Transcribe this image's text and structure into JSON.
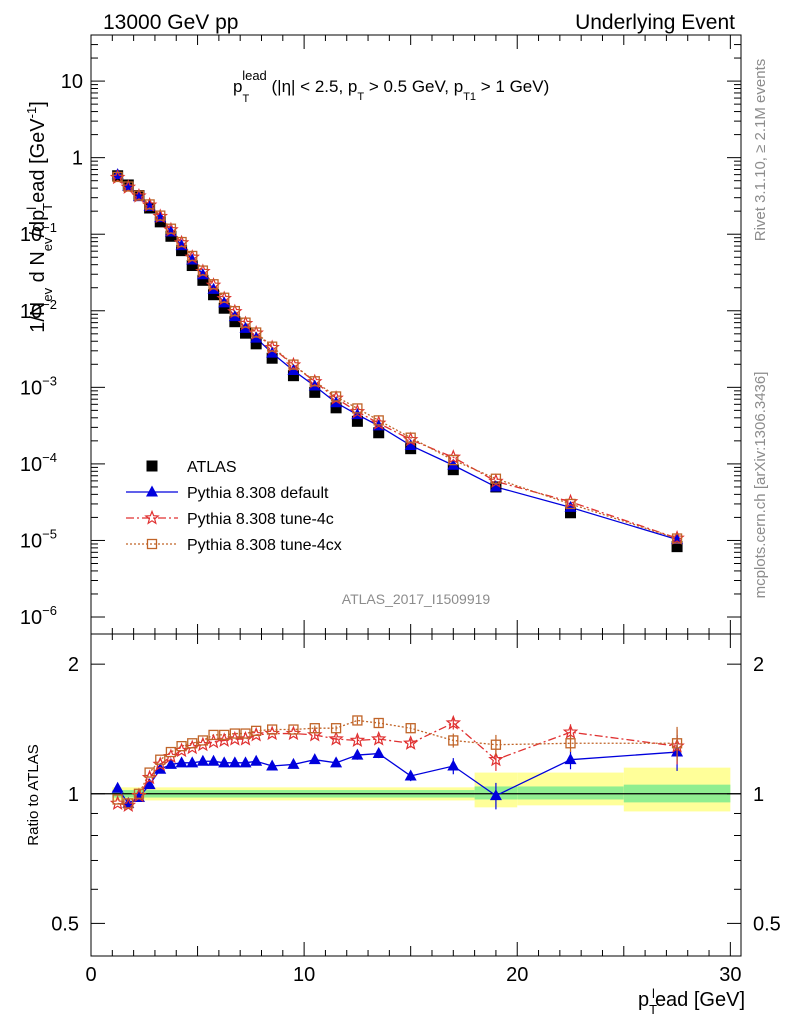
{
  "header": {
    "left": "13000 GeV pp",
    "right": "Underlying Event"
  },
  "side": {
    "rivet": "Rivet 3.1.10, ≥ 2.1M events",
    "mcplots": "mcplots.cern.ch [arXiv:1306.3436]"
  },
  "chart_data": [
    {
      "type": "scatter",
      "panel": "main",
      "title": "p_T^lead (|η| < 2.5, p_T > 0.5 GeV, p_T1 > 1 GeV)",
      "title_parts": {
        "p": "p",
        "sup": "lead",
        "sub1": "T",
        "mid": " (|η| < 2.5, p",
        "sub2": "T",
        "mid2": " > 0.5 GeV, p",
        "sub3": "T1",
        "end": " > 1 GeV)"
      },
      "xlabel": "p_T^lead [GeV]",
      "xlabel_parts": {
        "p": "p",
        "sub": "T",
        "sup": "l",
        "rest": "ead [GeV]"
      },
      "ylabel": "1/N_ev d N_ev/dp_T^lead [GeV^-1]",
      "ylabel_parts": {
        "a": "1/N",
        "sub1": "ev",
        "b": " d N",
        "sub2": "ev",
        "c": "/dp",
        "sup3": "l",
        "sub3": "T",
        "d": "ead [GeV",
        "sup4": "-1",
        "e": "]"
      },
      "xlim": [
        0,
        30.5
      ],
      "ylim": [
        6e-07,
        40
      ],
      "yscale": "log",
      "x_ticks": [
        0,
        10,
        20,
        30
      ],
      "y_ticks": [
        {
          "v": 1e-06,
          "base": "10",
          "exp": "−6"
        },
        {
          "v": 1e-05,
          "base": "10",
          "exp": "−5"
        },
        {
          "v": 0.0001,
          "base": "10",
          "exp": "−4"
        },
        {
          "v": 0.001,
          "base": "10",
          "exp": "−3"
        },
        {
          "v": 0.01,
          "base": "10",
          "exp": "−2"
        },
        {
          "v": 0.1,
          "base": "10",
          "exp": "−1"
        },
        {
          "v": 1,
          "base": "1",
          "exp": ""
        },
        {
          "v": 10,
          "base": "10",
          "exp": ""
        }
      ],
      "x": [
        1.25,
        1.75,
        2.25,
        2.75,
        3.25,
        3.75,
        4.25,
        4.75,
        5.25,
        5.75,
        6.25,
        6.75,
        7.25,
        7.75,
        8.5,
        9.5,
        10.5,
        11.5,
        12.5,
        13.5,
        15.0,
        17.0,
        19.0,
        22.5,
        27.5
      ],
      "series": [
        {
          "name": "ATLAS",
          "color": "#000000",
          "marker": "square-filled",
          "values": [
            0.58,
            0.44,
            0.32,
            0.22,
            0.145,
            0.094,
            0.061,
            0.039,
            0.025,
            0.0162,
            0.0108,
            0.0072,
            0.0051,
            0.0037,
            0.0024,
            0.00142,
            0.00086,
            0.00054,
            0.00036,
            0.000255,
            0.000158,
            8.4e-05,
            5e-05,
            2.3e-05,
            8.3e-06
          ]
        },
        {
          "name": "Pythia 8.308 default",
          "color": "#0000dd",
          "marker": "triangle-filled",
          "line": "solid",
          "values": [
            0.6,
            0.42,
            0.31,
            0.23,
            0.165,
            0.107,
            0.071,
            0.046,
            0.0295,
            0.019,
            0.0127,
            0.0084,
            0.0059,
            0.0044,
            0.0028,
            0.00166,
            0.00104,
            0.00063,
            0.00044,
            0.000314,
            0.000174,
            9.6e-05,
            5e-05,
            2.7e-05,
            1.03e-05
          ]
        },
        {
          "name": "Pythia 8.308 tune-4c",
          "color": "#e03030",
          "marker": "star-open",
          "line": "dashdot",
          "values": [
            0.55,
            0.41,
            0.315,
            0.24,
            0.17,
            0.114,
            0.077,
            0.05,
            0.0325,
            0.0215,
            0.0144,
            0.0097,
            0.0068,
            0.0051,
            0.0033,
            0.00196,
            0.00118,
            0.00072,
            0.00048,
            0.00034,
            0.000207,
            0.000122,
            5.9e-05,
            3.2e-05,
            1.07e-05
          ]
        },
        {
          "name": "Pythia 8.308 tune-4cx",
          "color": "#c06428",
          "marker": "square-open",
          "line": "dotted",
          "values": [
            0.56,
            0.42,
            0.32,
            0.245,
            0.175,
            0.118,
            0.079,
            0.052,
            0.0335,
            0.0222,
            0.0148,
            0.0099,
            0.007,
            0.0052,
            0.0034,
            0.00198,
            0.0012,
            0.00076,
            0.00053,
            0.00037,
            0.00022,
            0.000112,
            6.4e-05,
            3e-05,
            1.06e-05
          ]
        }
      ],
      "legend": [
        "ATLAS",
        "Pythia 8.308 default",
        "Pythia 8.308 tune-4c",
        "Pythia 8.308 tune-4cx"
      ],
      "legend_position": "lower-left",
      "watermark": "ATLAS_2017_I1509919"
    },
    {
      "type": "scatter",
      "panel": "ratio",
      "ylabel": "Ratio to ATLAS",
      "xlim": [
        0,
        30.5
      ],
      "ylim": [
        0.42,
        2.35
      ],
      "yscale": "log",
      "y_ticks": [
        {
          "v": 0.5,
          "label": "0.5"
        },
        {
          "v": 1,
          "label": "1"
        },
        {
          "v": 2,
          "label": "2"
        }
      ],
      "band_inner_color": "#90ee90",
      "band_outer_color": "#ffff99",
      "bands": [
        {
          "x0": 1.0,
          "x1": 18.0,
          "inner": [
            0.98,
            1.02
          ],
          "outer": [
            0.965,
            1.035
          ]
        },
        {
          "x0": 18.0,
          "x1": 20.0,
          "inner": [
            0.97,
            1.04
          ],
          "outer": [
            0.93,
            1.12
          ]
        },
        {
          "x0": 20.0,
          "x1": 25.0,
          "inner": [
            0.97,
            1.04
          ],
          "outer": [
            0.94,
            1.12
          ]
        },
        {
          "x0": 25.0,
          "x1": 30.0,
          "inner": [
            0.955,
            1.05
          ],
          "outer": [
            0.91,
            1.15
          ]
        }
      ],
      "x": [
        1.25,
        1.75,
        2.25,
        2.75,
        3.25,
        3.75,
        4.25,
        4.75,
        5.25,
        5.75,
        6.25,
        6.75,
        7.25,
        7.75,
        8.5,
        9.5,
        10.5,
        11.5,
        12.5,
        13.5,
        15.0,
        17.0,
        19.0,
        22.5,
        27.5
      ],
      "series": [
        {
          "name": "Pythia 8.308 default",
          "color": "#0000dd",
          "marker": "triangle-filled",
          "line": "solid",
          "values": [
            1.03,
            0.95,
            0.98,
            1.05,
            1.14,
            1.17,
            1.18,
            1.18,
            1.19,
            1.19,
            1.18,
            1.18,
            1.18,
            1.19,
            1.16,
            1.17,
            1.2,
            1.18,
            1.23,
            1.24,
            1.1,
            1.16,
            0.99,
            1.2,
            1.25
          ],
          "errors": [
            0.005,
            0.005,
            0.005,
            0.005,
            0.005,
            0.005,
            0.005,
            0.005,
            0.005,
            0.005,
            0.005,
            0.005,
            0.005,
            0.005,
            0.005,
            0.005,
            0.02,
            0.02,
            0.03,
            0.03,
            0.03,
            0.05,
            0.07,
            0.06,
            0.12
          ]
        },
        {
          "name": "Pythia 8.308 tune-4c",
          "color": "#e03030",
          "marker": "star-open",
          "line": "dashdot",
          "values": [
            0.95,
            0.94,
            0.99,
            1.09,
            1.17,
            1.22,
            1.26,
            1.28,
            1.3,
            1.32,
            1.33,
            1.34,
            1.34,
            1.37,
            1.38,
            1.38,
            1.37,
            1.34,
            1.33,
            1.34,
            1.31,
            1.46,
            1.2,
            1.39,
            1.29
          ],
          "errors": [
            0.005,
            0.005,
            0.005,
            0.005,
            0.005,
            0.005,
            0.005,
            0.005,
            0.005,
            0.005,
            0.005,
            0.005,
            0.005,
            0.005,
            0.005,
            0.005,
            0.02,
            0.02,
            0.03,
            0.03,
            0.03,
            0.05,
            0.07,
            0.06,
            0.12
          ]
        },
        {
          "name": "Pythia 8.308 tune-4cx",
          "color": "#c06428",
          "marker": "square-open",
          "line": "dotted",
          "values": [
            0.97,
            0.95,
            1.0,
            1.12,
            1.2,
            1.25,
            1.29,
            1.31,
            1.33,
            1.37,
            1.37,
            1.38,
            1.38,
            1.4,
            1.41,
            1.41,
            1.42,
            1.42,
            1.48,
            1.46,
            1.42,
            1.33,
            1.3,
            1.31,
            1.31
          ],
          "errors": [
            0.005,
            0.005,
            0.005,
            0.005,
            0.005,
            0.005,
            0.005,
            0.005,
            0.005,
            0.005,
            0.005,
            0.005,
            0.005,
            0.005,
            0.005,
            0.005,
            0.02,
            0.02,
            0.03,
            0.03,
            0.03,
            0.05,
            0.07,
            0.06,
            0.12
          ]
        }
      ]
    }
  ]
}
